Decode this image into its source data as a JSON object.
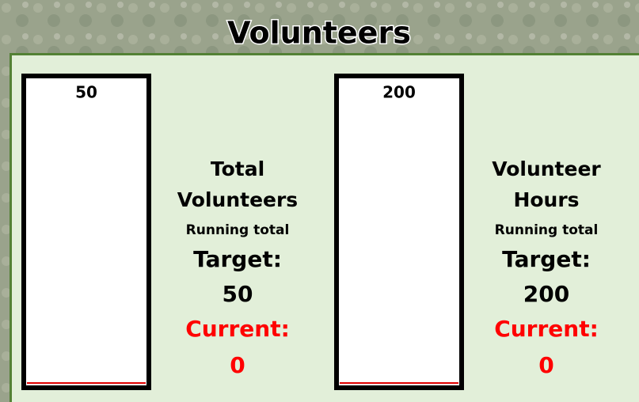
{
  "title": "Volunteers",
  "panels": [
    {
      "name_lines": [
        "Total",
        "Volunteers"
      ],
      "subtitle": "Running total",
      "target_label": "Target:",
      "target": 50,
      "current_label": "Current:",
      "current": 0
    },
    {
      "name_lines": [
        "Volunteer",
        "Hours"
      ],
      "subtitle": "Running total",
      "target_label": "Target:",
      "target": 200,
      "current_label": "Current:",
      "current": 0
    }
  ]
}
